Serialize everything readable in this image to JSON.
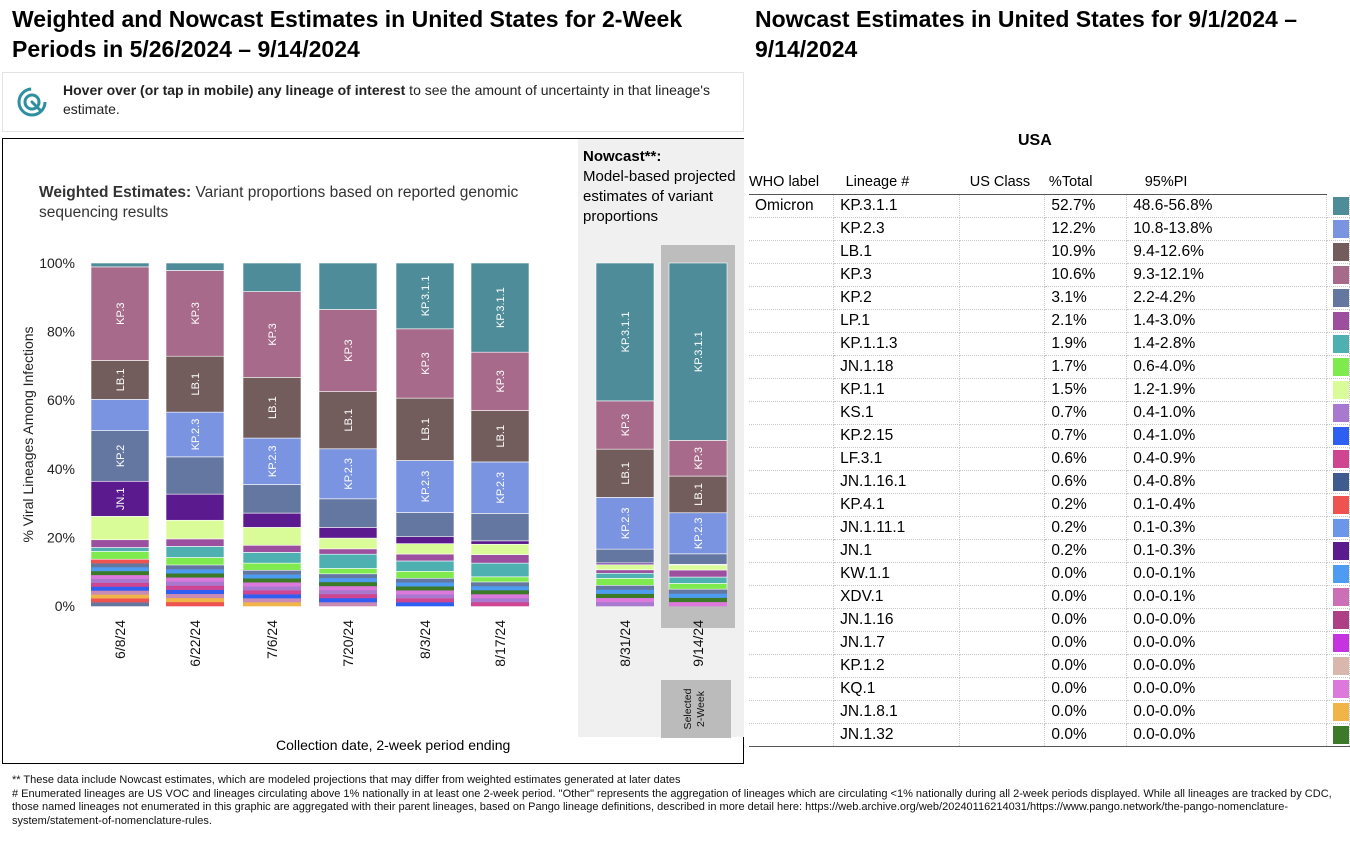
{
  "left_title": "Weighted and Nowcast Estimates in United States for 2-Week Periods in 5/26/2024 – 9/14/2024",
  "right_title": "Nowcast Estimates in United States for 9/1/2024 – 9/14/2024",
  "hint": {
    "bold": "Hover over (or tap in mobile) any lineage of interest",
    "rest": " to see the amount of uncertainty in that lineage's estimate."
  },
  "weighted_label": {
    "bold": "Weighted Estimates:",
    "rest": " Variant proportions based on reported genomic sequencing results"
  },
  "nowcast_label": {
    "bold": "Nowcast**:",
    "rest": "Model-based projected estimates of variant proportions"
  },
  "x_title": "Collection date, 2-week period ending",
  "selected_label": "Selected 2-Week",
  "table": {
    "region": "USA",
    "headers": [
      "WHO label",
      "Lineage #",
      "US Class",
      "%Total",
      "95%PI"
    ],
    "who_label": "Omicron",
    "rows": [
      {
        "lineage": "KP.3.1.1",
        "pct": "52.7%",
        "pi": "48.6-56.8%",
        "color": "#4e8c99"
      },
      {
        "lineage": "KP.2.3",
        "pct": "12.2%",
        "pi": "10.8-13.8%",
        "color": "#7b94e1"
      },
      {
        "lineage": "LB.1",
        "pct": "10.9%",
        "pi": "9.4-12.6%",
        "color": "#725c5c"
      },
      {
        "lineage": "KP.3",
        "pct": "10.6%",
        "pi": "9.3-12.1%",
        "color": "#a86a8a"
      },
      {
        "lineage": "KP.2",
        "pct": "3.1%",
        "pi": "2.2-4.2%",
        "color": "#6477a0"
      },
      {
        "lineage": "LP.1",
        "pct": "2.1%",
        "pi": "1.4-3.0%",
        "color": "#9b4f9e"
      },
      {
        "lineage": "KP.1.1.3",
        "pct": "1.9%",
        "pi": "1.4-2.8%",
        "color": "#4fb0b2"
      },
      {
        "lineage": "JN.1.18",
        "pct": "1.7%",
        "pi": "0.6-4.0%",
        "color": "#7eea4e"
      },
      {
        "lineage": "KP.1.1",
        "pct": "1.5%",
        "pi": "1.2-1.9%",
        "color": "#d9fb98"
      },
      {
        "lineage": "KS.1",
        "pct": "0.7%",
        "pi": "0.4-1.0%",
        "color": "#a978cf"
      },
      {
        "lineage": "KP.2.15",
        "pct": "0.7%",
        "pi": "0.4-1.0%",
        "color": "#2f5ef2"
      },
      {
        "lineage": "LF.3.1",
        "pct": "0.6%",
        "pi": "0.4-0.9%",
        "color": "#d04592"
      },
      {
        "lineage": "JN.1.16.1",
        "pct": "0.6%",
        "pi": "0.4-0.8%",
        "color": "#3e5c8e"
      },
      {
        "lineage": "KP.4.1",
        "pct": "0.2%",
        "pi": "0.1-0.4%",
        "color": "#ef5350"
      },
      {
        "lineage": "JN.1.11.1",
        "pct": "0.2%",
        "pi": "0.1-0.3%",
        "color": "#6a97ea"
      },
      {
        "lineage": "JN.1",
        "pct": "0.2%",
        "pi": "0.1-0.3%",
        "color": "#5b1a8e"
      },
      {
        "lineage": "KW.1.1",
        "pct": "0.0%",
        "pi": "0.0-0.1%",
        "color": "#4e9bf2"
      },
      {
        "lineage": "XDV.1",
        "pct": "0.0%",
        "pi": "0.0-0.1%",
        "color": "#cc6fb7"
      },
      {
        "lineage": "JN.1.16",
        "pct": "0.0%",
        "pi": "0.0-0.0%",
        "color": "#ad3f86"
      },
      {
        "lineage": "JN.1.7",
        "pct": "0.0%",
        "pi": "0.0-0.0%",
        "color": "#c633e0"
      },
      {
        "lineage": "KP.1.2",
        "pct": "0.0%",
        "pi": "0.0-0.0%",
        "color": "#d9b7ac"
      },
      {
        "lineage": "KQ.1",
        "pct": "0.0%",
        "pi": "0.0-0.0%",
        "color": "#dd79dd"
      },
      {
        "lineage": "JN.1.8.1",
        "pct": "0.0%",
        "pi": "0.0-0.0%",
        "color": "#f0b448"
      },
      {
        "lineage": "JN.1.32",
        "pct": "0.0%",
        "pi": "0.0-0.0%",
        "color": "#3c7a28"
      }
    ]
  },
  "footnotes": [
    "**     These data include Nowcast estimates, which are modeled projections that may differ from weighted estimates generated at later dates",
    "# Enumerated lineages are US VOC and lineages circulating above 1% nationally in at least one 2-week period. \"Other\" represents the aggregation of lineages which are circulating <1% nationally during all 2-week periods displayed.  While all lineages are tracked by CDC, those named lineages not enumerated in this graphic are aggregated with their parent lineages, based on Pango lineage definitions, described in more detail here: https://web.archive.org/web/20240116214031/https://www.pango.network/the-pango-nomenclature-system/statement-of-nomenclature-rules."
  ],
  "chart_data": {
    "type": "bar",
    "stacked": true,
    "ylabel": "% Viral Lineages Among Infections",
    "xlabel": "Collection date, 2-week period ending",
    "yticks": [
      "0%",
      "20%",
      "40%",
      "60%",
      "80%",
      "100%"
    ],
    "ylim": [
      0,
      100
    ],
    "categories": [
      "6/8/24",
      "6/22/24",
      "7/6/24",
      "7/20/24",
      "8/3/24",
      "8/17/24",
      "8/31/24",
      "9/14/24"
    ],
    "nowcast_categories": [
      "8/31/24",
      "9/14/24"
    ],
    "series": [
      {
        "name": "Other/minor",
        "color": "#c98ab5",
        "values": [
          12,
          11,
          10,
          9,
          8,
          7,
          6,
          5
        ]
      },
      {
        "name": "JN.1.18",
        "color": "#7eea4e",
        "values": [
          2,
          2,
          2,
          1.5,
          2,
          1.5,
          2,
          1.7
        ]
      },
      {
        "name": "KP.1.1.3",
        "color": "#4fb0b2",
        "values": [
          1,
          3,
          3,
          4,
          3,
          4,
          1.5,
          1.9
        ]
      },
      {
        "name": "LP.1",
        "color": "#9b4f9e",
        "values": [
          2,
          2,
          2,
          1.5,
          2,
          2.5,
          1,
          2.1
        ]
      },
      {
        "name": "KP.1.1",
        "color": "#d9fb98",
        "values": [
          6,
          5,
          5,
          3,
          3,
          3,
          1.5,
          1.5
        ]
      },
      {
        "name": "JN.1",
        "color": "#5b1a8e",
        "values": [
          9,
          7,
          4,
          3,
          2,
          1,
          0.5,
          0.2
        ]
      },
      {
        "name": "KP.2",
        "color": "#6477a0",
        "values": [
          13,
          10,
          8,
          8,
          7,
          8,
          4,
          3.1
        ]
      },
      {
        "name": "KP.2.3",
        "color": "#7b94e1",
        "values": [
          8,
          12,
          13,
          14,
          15,
          15,
          15,
          12.2
        ]
      },
      {
        "name": "LB.1",
        "color": "#725c5c",
        "values": [
          10,
          15,
          17,
          16,
          18,
          15,
          14,
          10.9
        ]
      },
      {
        "name": "KP.3",
        "color": "#a86a8a",
        "values": [
          24,
          23,
          24,
          23,
          20,
          17,
          14,
          10.6
        ]
      },
      {
        "name": "KP.3.1.1",
        "color": "#4e8c99",
        "values": [
          1,
          2,
          8,
          13,
          19,
          26,
          40,
          52.7
        ]
      }
    ],
    "bar_labels": [
      {
        "bar": 0,
        "series": "KP.3",
        "text": "KP.3"
      },
      {
        "bar": 0,
        "series": "LB.1",
        "text": "LB.1"
      },
      {
        "bar": 0,
        "series": "KP.2",
        "text": "KP.2"
      },
      {
        "bar": 0,
        "series": "JN.1",
        "text": "JN.1"
      },
      {
        "bar": 1,
        "series": "KP.3",
        "text": "KP.3"
      },
      {
        "bar": 1,
        "series": "LB.1",
        "text": "LB.1"
      },
      {
        "bar": 1,
        "series": "KP.2.3",
        "text": "KP.2.3"
      },
      {
        "bar": 2,
        "series": "KP.3",
        "text": "KP.3"
      },
      {
        "bar": 2,
        "series": "LB.1",
        "text": "LB.1"
      },
      {
        "bar": 2,
        "series": "KP.2.3",
        "text": "KP.2.3"
      },
      {
        "bar": 3,
        "series": "KP.3",
        "text": "KP.3"
      },
      {
        "bar": 3,
        "series": "LB.1",
        "text": "LB.1"
      },
      {
        "bar": 3,
        "series": "KP.2.3",
        "text": "KP.2.3"
      },
      {
        "bar": 4,
        "series": "KP.3.1.1",
        "text": "KP.3.1.1"
      },
      {
        "bar": 4,
        "series": "KP.3",
        "text": "KP.3"
      },
      {
        "bar": 4,
        "series": "LB.1",
        "text": "LB.1"
      },
      {
        "bar": 4,
        "series": "KP.2.3",
        "text": "KP.2.3"
      },
      {
        "bar": 5,
        "series": "KP.3.1.1",
        "text": "KP.3.1.1"
      },
      {
        "bar": 5,
        "series": "KP.3",
        "text": "KP.3"
      },
      {
        "bar": 5,
        "series": "LB.1",
        "text": "LB.1"
      },
      {
        "bar": 5,
        "series": "KP.2.3",
        "text": "KP.2.3"
      },
      {
        "bar": 6,
        "series": "KP.3.1.1",
        "text": "KP.3.1.1"
      },
      {
        "bar": 6,
        "series": "KP.3",
        "text": "KP.3"
      },
      {
        "bar": 6,
        "series": "LB.1",
        "text": "LB.1"
      },
      {
        "bar": 6,
        "series": "KP.2.3",
        "text": "KP.2.3"
      },
      {
        "bar": 7,
        "series": "KP.3.1.1",
        "text": "KP.3.1.1"
      },
      {
        "bar": 7,
        "series": "KP.3",
        "text": "KP.3"
      },
      {
        "bar": 7,
        "series": "LB.1",
        "text": "LB.1"
      },
      {
        "bar": 7,
        "series": "KP.2.3",
        "text": "KP.2.3"
      }
    ]
  }
}
